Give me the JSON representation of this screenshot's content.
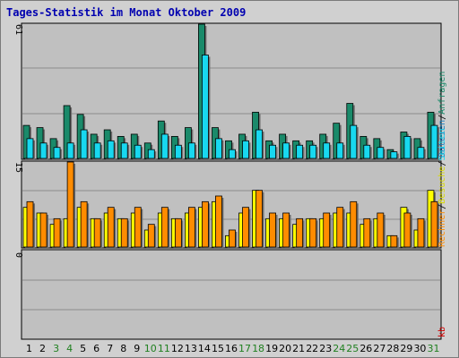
{
  "title": "Tages-Statistik im Monat Oktober 2009",
  "colors": {
    "panel_bg": "#c0c0c0",
    "grid": "#8c8c8c",
    "anfragen": "#1a8a6a",
    "dateien": "#18d8f0",
    "seiten": "#ff8c00",
    "besuche": "#ffff00",
    "rechner": "#ff8c00",
    "kb": "#d00000",
    "weekend_label": "#208020",
    "weekday_label": "#000000"
  },
  "chart_data": [
    {
      "type": "bar",
      "categories": [
        "1",
        "2",
        "3",
        "4",
        "5",
        "6",
        "7",
        "8",
        "9",
        "10",
        "11",
        "12",
        "13",
        "14",
        "15",
        "16",
        "17",
        "18",
        "19",
        "20",
        "21",
        "22",
        "23",
        "24",
        "25",
        "26",
        "27",
        "28",
        "29",
        "30",
        "31"
      ],
      "weekend_days": [
        "3",
        "4",
        "10",
        "11",
        "17",
        "18",
        "24",
        "25",
        "31"
      ],
      "ymax_label": "61",
      "ylim": [
        0,
        61
      ],
      "side_labels": [
        {
          "text": "Anfragen",
          "color": "#1a8a6a"
        },
        {
          "text": "Dateien",
          "color": "#1a80c0"
        }
      ],
      "separator": "/",
      "series": [
        {
          "name": "Anfragen",
          "values": [
            15,
            14,
            9,
            24,
            20,
            11,
            13,
            10,
            11,
            7,
            17,
            10,
            14,
            61,
            14,
            8,
            11,
            21,
            8,
            11,
            8,
            8,
            11,
            16,
            25,
            10,
            9,
            4,
            12,
            9,
            21
          ]
        },
        {
          "name": "Dateien",
          "values": [
            9,
            7,
            5,
            7,
            13,
            7,
            8,
            7,
            6,
            4,
            11,
            6,
            7,
            47,
            9,
            4,
            8,
            13,
            6,
            7,
            6,
            6,
            7,
            7,
            15,
            6,
            5,
            3,
            10,
            5,
            15
          ]
        }
      ]
    },
    {
      "type": "bar",
      "categories": [
        "1",
        "2",
        "3",
        "4",
        "5",
        "6",
        "7",
        "8",
        "9",
        "10",
        "11",
        "12",
        "13",
        "14",
        "15",
        "16",
        "17",
        "18",
        "19",
        "20",
        "21",
        "22",
        "23",
        "24",
        "25",
        "26",
        "27",
        "28",
        "29",
        "30",
        "31"
      ],
      "ymax_label": "15",
      "ylim": [
        0,
        15
      ],
      "side_labels": [
        {
          "text": "Rechner",
          "color": "#ff8c00"
        },
        {
          "text": "Besuche",
          "color": "#d8d800"
        },
        {
          "text": "Seiten",
          "color": "#18d8f0"
        }
      ],
      "series": [
        {
          "name": "Besuche",
          "values": [
            7,
            6,
            4,
            5,
            7,
            5,
            6,
            5,
            6,
            3,
            6,
            5,
            6,
            7,
            8,
            2,
            6,
            10,
            5,
            5,
            4,
            5,
            5,
            6,
            6,
            4,
            5,
            2,
            7,
            3,
            10
          ]
        },
        {
          "name": "Seiten",
          "values": [
            8,
            6,
            5,
            15,
            8,
            5,
            7,
            5,
            7,
            4,
            7,
            5,
            7,
            8,
            9,
            3,
            7,
            10,
            6,
            6,
            5,
            5,
            6,
            7,
            8,
            5,
            6,
            2,
            6,
            5,
            8
          ]
        }
      ]
    },
    {
      "type": "bar",
      "categories": [
        "1",
        "2",
        "3",
        "4",
        "5",
        "6",
        "7",
        "8",
        "9",
        "10",
        "11",
        "12",
        "13",
        "14",
        "15",
        "16",
        "17",
        "18",
        "19",
        "20",
        "21",
        "22",
        "23",
        "24",
        "25",
        "26",
        "27",
        "28",
        "29",
        "30",
        "31"
      ],
      "ymax_label": "0",
      "ylim": [
        0,
        1
      ],
      "side_labels": [
        {
          "text": "kb",
          "color": "#d00000"
        }
      ],
      "series": [
        {
          "name": "kb",
          "values": [
            0,
            0,
            0,
            0,
            0,
            0,
            0,
            0,
            0,
            0,
            0,
            0,
            0,
            0,
            0,
            0,
            0,
            0,
            0,
            0,
            0,
            0,
            0,
            0,
            0,
            0,
            0,
            0,
            0,
            0,
            0
          ]
        }
      ]
    }
  ]
}
